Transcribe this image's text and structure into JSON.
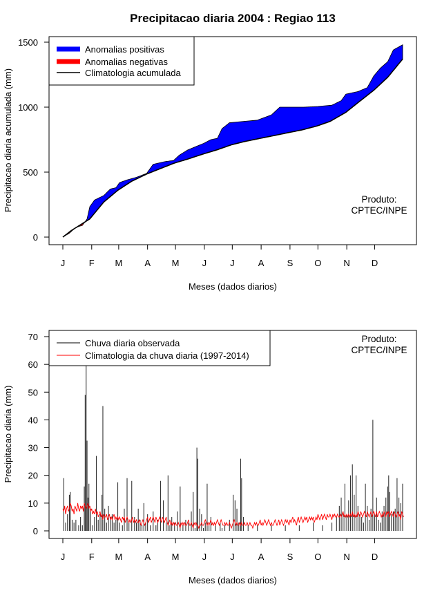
{
  "chart_data": [
    {
      "type": "area",
      "title": "Precipitacao diaria 2004 : Regiao 113",
      "xlabel": "Meses (dados diarios)",
      "ylabel": "Precipitacao diaria acumulada (mm)",
      "x_range_days": [
        1,
        366
      ],
      "ylim": [
        0,
        1500
      ],
      "yticks": [
        0,
        500,
        1000,
        1500
      ],
      "month_ticks": [
        "J",
        "F",
        "M",
        "A",
        "M",
        "J",
        "J",
        "A",
        "S",
        "O",
        "N",
        "D"
      ],
      "legend": [
        {
          "label": "Anomalias positivas",
          "color": "#0000ff",
          "style": "thick"
        },
        {
          "label": "Anomalias negativas",
          "color": "#ff0000",
          "style": "thick"
        },
        {
          "label": "Climatologia acumulada",
          "color": "#000000",
          "style": "line"
        }
      ],
      "annotation": [
        "Produto:",
        "CPTEC/INPE"
      ],
      "climatology_points": [
        [
          1,
          0
        ],
        [
          10,
          50
        ],
        [
          20,
          95
        ],
        [
          30,
          140
        ],
        [
          45,
          270
        ],
        [
          60,
          360
        ],
        [
          75,
          430
        ],
        [
          91,
          485
        ],
        [
          105,
          525
        ],
        [
          121,
          570
        ],
        [
          135,
          600
        ],
        [
          152,
          640
        ],
        [
          166,
          670
        ],
        [
          182,
          710
        ],
        [
          196,
          735
        ],
        [
          213,
          760
        ],
        [
          227,
          780
        ],
        [
          244,
          805
        ],
        [
          258,
          825
        ],
        [
          274,
          855
        ],
        [
          288,
          890
        ],
        [
          305,
          960
        ],
        [
          319,
          1040
        ],
        [
          335,
          1130
        ],
        [
          350,
          1230
        ],
        [
          366,
          1370
        ]
      ],
      "observed_points": [
        [
          1,
          0
        ],
        [
          8,
          30
        ],
        [
          15,
          75
        ],
        [
          22,
          90
        ],
        [
          27,
          140
        ],
        [
          30,
          235
        ],
        [
          35,
          285
        ],
        [
          45,
          320
        ],
        [
          52,
          370
        ],
        [
          58,
          380
        ],
        [
          62,
          420
        ],
        [
          70,
          440
        ],
        [
          80,
          460
        ],
        [
          91,
          490
        ],
        [
          98,
          560
        ],
        [
          110,
          580
        ],
        [
          120,
          590
        ],
        [
          126,
          630
        ],
        [
          135,
          670
        ],
        [
          145,
          700
        ],
        [
          152,
          720
        ],
        [
          160,
          750
        ],
        [
          167,
          760
        ],
        [
          172,
          835
        ],
        [
          180,
          880
        ],
        [
          195,
          890
        ],
        [
          210,
          900
        ],
        [
          225,
          940
        ],
        [
          234,
          1000
        ],
        [
          244,
          1000
        ],
        [
          260,
          1000
        ],
        [
          275,
          1005
        ],
        [
          290,
          1015
        ],
        [
          300,
          1050
        ],
        [
          305,
          1100
        ],
        [
          318,
          1120
        ],
        [
          328,
          1150
        ],
        [
          335,
          1240
        ],
        [
          342,
          1300
        ],
        [
          350,
          1350
        ],
        [
          356,
          1440
        ],
        [
          366,
          1480
        ]
      ]
    },
    {
      "type": "bar",
      "xlabel": "Meses (dados diarios)",
      "ylabel": "Precipitacao diaria (mm)",
      "x_range_days": [
        1,
        366
      ],
      "ylim": [
        0,
        70
      ],
      "yticks": [
        0,
        10,
        20,
        30,
        40,
        50,
        60,
        70
      ],
      "month_ticks": [
        "J",
        "F",
        "M",
        "A",
        "M",
        "J",
        "J",
        "A",
        "S",
        "O",
        "N",
        "D"
      ],
      "legend": [
        {
          "label": "Chuva diaria observada",
          "color": "#333333",
          "style": "line"
        },
        {
          "label": "Climatologia da chuva diaria (1997-2014)",
          "color": "#ff0000",
          "style": "line"
        }
      ],
      "annotation": [
        "Produto:",
        "CPTEC/INPE"
      ],
      "observed_spikes": [
        [
          2,
          19
        ],
        [
          4,
          3
        ],
        [
          6,
          6
        ],
        [
          8,
          13
        ],
        [
          9,
          14
        ],
        [
          11,
          4
        ],
        [
          13,
          3
        ],
        [
          15,
          4
        ],
        [
          18,
          2
        ],
        [
          20,
          5
        ],
        [
          22,
          2
        ],
        [
          24,
          16
        ],
        [
          25,
          49
        ],
        [
          26,
          60
        ],
        [
          27,
          32.5
        ],
        [
          28,
          12
        ],
        [
          29,
          17
        ],
        [
          31,
          8
        ],
        [
          33,
          2
        ],
        [
          35,
          5
        ],
        [
          37,
          27
        ],
        [
          39,
          4
        ],
        [
          41,
          6
        ],
        [
          43,
          13
        ],
        [
          44,
          45
        ],
        [
          46,
          8
        ],
        [
          48,
          3
        ],
        [
          50,
          9
        ],
        [
          52,
          5
        ],
        [
          54,
          6
        ],
        [
          56,
          3
        ],
        [
          58,
          4
        ],
        [
          60,
          17.5
        ],
        [
          62,
          3
        ],
        [
          65,
          2
        ],
        [
          67,
          8
        ],
        [
          70,
          19
        ],
        [
          72,
          3
        ],
        [
          75,
          18
        ],
        [
          78,
          5
        ],
        [
          80,
          3
        ],
        [
          82,
          8
        ],
        [
          84,
          4
        ],
        [
          86,
          2
        ],
        [
          88,
          10
        ],
        [
          90,
          3
        ],
        [
          92,
          6
        ],
        [
          95,
          2
        ],
        [
          98,
          7
        ],
        [
          101,
          2
        ],
        [
          103,
          4
        ],
        [
          106,
          18
        ],
        [
          109,
          11
        ],
        [
          112,
          3
        ],
        [
          114,
          20
        ],
        [
          116,
          2
        ],
        [
          118,
          5
        ],
        [
          121,
          3
        ],
        [
          124,
          7
        ],
        [
          127,
          16
        ],
        [
          130,
          2
        ],
        [
          133,
          4
        ],
        [
          136,
          3
        ],
        [
          139,
          7
        ],
        [
          141,
          14
        ],
        [
          143,
          1
        ],
        [
          145,
          30
        ],
        [
          146,
          26
        ],
        [
          148,
          8
        ],
        [
          150,
          6
        ],
        [
          152,
          1
        ],
        [
          154,
          3
        ],
        [
          156,
          17
        ],
        [
          158,
          2
        ],
        [
          160,
          5
        ],
        [
          165,
          2
        ],
        [
          170,
          3
        ],
        [
          172,
          1
        ],
        [
          175,
          2
        ],
        [
          180,
          4
        ],
        [
          184,
          13
        ],
        [
          186,
          11
        ],
        [
          188,
          8
        ],
        [
          190,
          3
        ],
        [
          192,
          26
        ],
        [
          193,
          19
        ],
        [
          195,
          5
        ],
        [
          200,
          2
        ],
        [
          210,
          2
        ],
        [
          225,
          2
        ],
        [
          240,
          2
        ],
        [
          255,
          2
        ],
        [
          270,
          3
        ],
        [
          280,
          2
        ],
        [
          290,
          3
        ],
        [
          295,
          5
        ],
        [
          298,
          9
        ],
        [
          300,
          12
        ],
        [
          302,
          7
        ],
        [
          304,
          17
        ],
        [
          306,
          6
        ],
        [
          308,
          11
        ],
        [
          310,
          20
        ],
        [
          312,
          24
        ],
        [
          314,
          13
        ],
        [
          316,
          20
        ],
        [
          318,
          9
        ],
        [
          320,
          6
        ],
        [
          322,
          5
        ],
        [
          324,
          3
        ],
        [
          326,
          17
        ],
        [
          328,
          9
        ],
        [
          330,
          4
        ],
        [
          332,
          8
        ],
        [
          334,
          40
        ],
        [
          336,
          6
        ],
        [
          338,
          12
        ],
        [
          340,
          4
        ],
        [
          342,
          3
        ],
        [
          344,
          7
        ],
        [
          346,
          9
        ],
        [
          348,
          12
        ],
        [
          350,
          16
        ],
        [
          351,
          20
        ],
        [
          352,
          14
        ],
        [
          354,
          6
        ],
        [
          356,
          7
        ],
        [
          358,
          8
        ],
        [
          360,
          19
        ],
        [
          362,
          12
        ],
        [
          364,
          10
        ],
        [
          366,
          17
        ]
      ],
      "climatology_series": [
        8,
        7,
        9,
        6,
        8,
        9,
        7,
        8,
        10,
        9,
        7,
        8,
        6,
        9,
        8,
        7,
        10,
        8,
        7,
        9,
        8,
        9,
        7,
        10,
        9,
        8,
        9,
        10,
        8,
        9,
        7,
        8,
        6,
        7,
        6,
        8,
        6,
        7,
        5,
        6,
        7,
        5,
        6,
        4,
        6,
        5,
        5,
        6,
        4,
        5,
        6,
        4,
        5,
        4,
        5,
        6,
        4,
        5,
        4,
        5,
        4,
        5,
        4,
        3,
        5,
        4,
        5,
        3,
        4,
        5,
        4,
        3,
        4,
        3,
        4,
        5,
        3,
        4,
        3,
        4,
        3,
        3,
        4,
        3,
        2,
        3,
        4,
        3,
        2,
        3,
        4,
        5,
        3,
        4,
        5,
        3,
        4,
        5,
        4,
        3,
        5,
        4,
        3,
        4,
        5,
        4,
        3,
        5,
        4,
        3,
        4,
        5,
        3,
        2,
        3,
        4,
        2,
        3,
        2,
        3,
        2,
        3,
        2,
        2,
        3,
        2,
        1,
        3,
        2,
        3,
        2,
        3,
        2,
        2,
        3,
        4,
        2,
        2,
        3,
        2,
        1,
        3,
        2,
        3,
        2,
        2,
        1,
        2,
        2,
        3,
        2,
        2,
        3,
        4,
        3,
        2,
        3,
        2,
        3,
        4,
        2,
        3,
        2,
        3,
        2,
        3,
        4,
        3,
        2,
        3,
        4,
        3,
        2,
        2,
        3,
        2,
        3,
        2,
        2,
        3,
        2,
        1,
        2,
        3,
        4,
        3,
        2,
        3,
        2,
        2,
        3,
        2,
        3,
        2,
        2,
        3,
        2,
        2,
        3,
        2,
        2,
        3,
        2,
        2,
        1,
        2,
        3,
        2,
        3,
        2,
        2,
        3,
        4,
        2,
        3,
        2,
        3,
        4,
        3,
        2,
        3,
        4,
        3,
        2,
        3,
        2,
        2,
        3,
        4,
        3,
        2,
        3,
        4,
        2,
        3,
        4,
        3,
        2,
        3,
        4,
        3,
        4,
        3,
        2,
        4,
        3,
        4,
        5,
        3,
        4,
        3,
        2,
        4,
        5,
        3,
        4,
        5,
        4,
        3,
        4,
        5,
        4,
        5,
        3,
        4,
        5,
        4,
        5,
        4,
        5,
        3,
        4,
        5,
        4,
        6,
        5,
        4,
        5,
        6,
        4,
        5,
        6,
        5,
        4,
        6,
        5,
        5,
        6,
        5,
        4,
        6,
        5,
        6,
        5,
        5,
        6,
        5,
        5,
        6,
        5,
        6,
        7,
        5,
        6,
        5,
        6,
        5,
        6,
        5,
        6,
        5,
        7,
        5,
        6,
        5,
        6,
        5,
        7,
        6,
        5,
        7,
        6,
        5,
        6,
        7,
        6,
        5,
        7,
        6,
        5,
        6,
        7,
        5,
        6,
        7,
        6,
        5,
        7,
        5,
        6,
        7,
        6,
        5,
        6,
        5,
        7,
        6,
        5,
        7,
        6,
        7,
        5,
        6,
        7,
        6,
        5,
        7,
        6,
        5,
        6,
        7,
        5,
        6,
        4,
        7,
        6,
        5
      ]
    }
  ]
}
